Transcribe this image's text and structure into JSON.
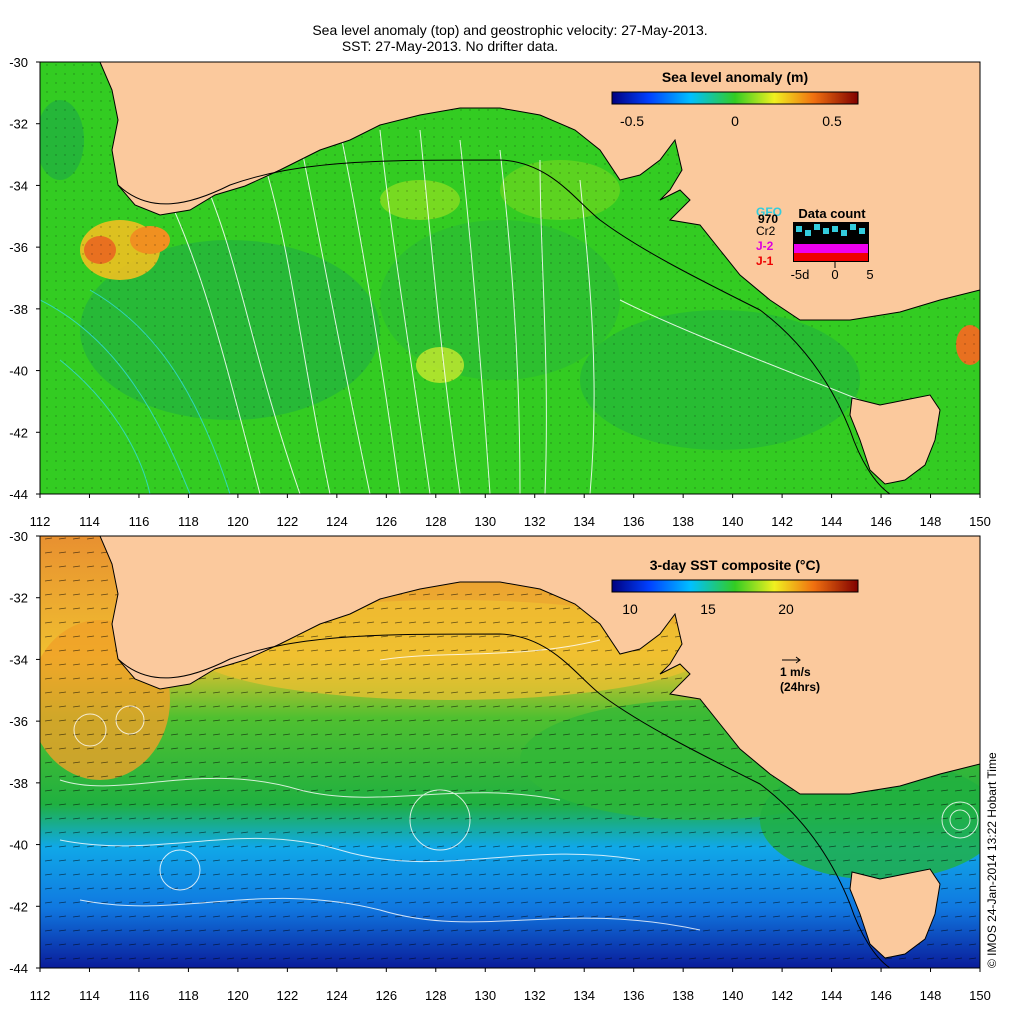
{
  "title": {
    "line1": "Sea level anomaly (top) and geostrophic velocity: 27-May-2013.",
    "line2": "SST: 27-May-2013. No drifter data."
  },
  "top_map": {
    "colorbar": {
      "label": "Sea level anomaly (m)",
      "ticks": [
        "-0.5",
        "0",
        "0.5"
      ],
      "range": [
        -0.65,
        0.65
      ]
    },
    "data_count": {
      "title": "Data count",
      "satellites": [
        {
          "name": "GFO",
          "color": "#33ccdd"
        },
        {
          "name": "970",
          "color": "#000000"
        },
        {
          "name": "Cr2",
          "color": "#000000"
        },
        {
          "name": "J-2",
          "color": "#dd00dd"
        },
        {
          "name": "J-1",
          "color": "#ee0000"
        }
      ],
      "axis_labels": [
        "-5d",
        "0",
        "5"
      ]
    }
  },
  "bottom_map": {
    "colorbar": {
      "label": "3-day SST composite (°C)",
      "ticks": [
        "10",
        "15",
        "20"
      ],
      "range": [
        8,
        24
      ]
    },
    "scale_arrow": {
      "speed": "1 m/s",
      "period": "(24hrs)"
    }
  },
  "axes": {
    "lon_ticks": [
      "112",
      "114",
      "116",
      "118",
      "120",
      "122",
      "124",
      "126",
      "128",
      "130",
      "132",
      "134",
      "136",
      "138",
      "140",
      "142",
      "144",
      "146",
      "148",
      "150"
    ],
    "lat_ticks": [
      "-30",
      "-32",
      "-34",
      "-36",
      "-38",
      "-40",
      "-42",
      "-44"
    ],
    "lon_range": [
      112,
      150
    ],
    "lat_range": [
      -44,
      -30
    ]
  },
  "colors": {
    "land": "#fbc99d",
    "sla_ocean": "#33cc22",
    "sst_warm": "#f0a830",
    "sst_mid": "#2ec030",
    "sst_cool": "#1a9fe6",
    "sst_cold": "#1030b0"
  },
  "credit": "© IMOS 24-Jan-2014 13:22 Hobart Time"
}
